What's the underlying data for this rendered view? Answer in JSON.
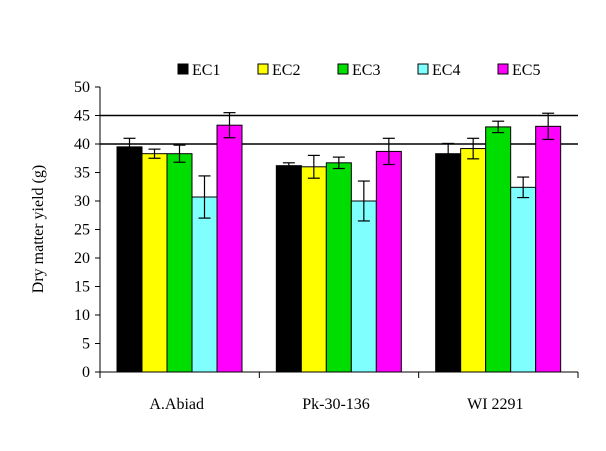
{
  "chart_data": {
    "type": "bar",
    "title": "",
    "xlabel": "",
    "ylabel": "Dry matter yield (g)",
    "ylim": [
      0,
      50
    ],
    "yticks": [
      0,
      5,
      10,
      15,
      20,
      25,
      30,
      35,
      40,
      45,
      50
    ],
    "grid": "horizontal",
    "legend_position": "top",
    "categories": [
      "A.Abiad",
      "Pk-30-136",
      "WI 2291"
    ],
    "series": [
      {
        "name": "EC1",
        "color": "#000000",
        "values": [
          39.5,
          36.2,
          38.3
        ],
        "errors": [
          1.5,
          0.5,
          1.8
        ]
      },
      {
        "name": "EC2",
        "color": "#ffff00",
        "values": [
          38.3,
          36.0,
          39.2
        ],
        "errors": [
          0.8,
          2.0,
          1.8
        ]
      },
      {
        "name": "EC3",
        "color": "#00dd00",
        "values": [
          38.3,
          36.7,
          43.0
        ],
        "errors": [
          1.5,
          1.0,
          1.0
        ]
      },
      {
        "name": "EC4",
        "color": "#80ffff",
        "values": [
          30.7,
          30.0,
          32.4
        ],
        "errors": [
          3.7,
          3.5,
          1.8
        ]
      },
      {
        "name": "EC5",
        "color": "#ff00ff",
        "values": [
          43.3,
          38.7,
          43.1
        ],
        "errors": [
          2.2,
          2.3,
          2.3
        ]
      }
    ]
  }
}
